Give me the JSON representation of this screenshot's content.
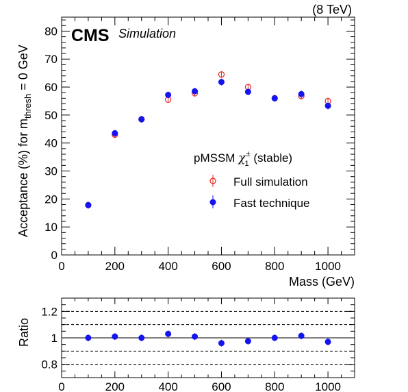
{
  "header": {
    "energy_label": "(8 TeV)",
    "experiment": "CMS",
    "tag": "Simulation"
  },
  "legend": {
    "title_main": "pMSSM ",
    "title_chi": "χ",
    "title_sub": "1",
    "title_sup": "±",
    "title_tail": " (stable)",
    "placement": "right-middle"
  },
  "colors": {
    "full": "#e8221f",
    "fast": "#1414f0",
    "axis": "#000000"
  },
  "chart_data": [
    {
      "type": "scatter",
      "xlabel": "Mass (GeV)",
      "ylabel_main": "Acceptance (%) for m",
      "ylabel_sub": "thresh",
      "ylabel_tail": " = 0 GeV",
      "xlim": [
        0,
        1100
      ],
      "ylim": [
        0,
        85
      ],
      "x_ticks": [
        0,
        200,
        400,
        600,
        800,
        1000
      ],
      "x_tick_labels": [
        "0",
        "200",
        "400",
        "600",
        "800",
        "1000"
      ],
      "y_ticks": [
        0,
        10,
        20,
        30,
        40,
        50,
        60,
        70,
        80
      ],
      "y_tick_labels": [
        "0",
        "10",
        "20",
        "30",
        "40",
        "50",
        "60",
        "70",
        "80"
      ],
      "x": [
        100,
        200,
        300,
        400,
        500,
        600,
        700,
        800,
        900,
        1000
      ],
      "series": [
        {
          "name": "Full simulation",
          "marker": "open-circle",
          "values": [
            17.8,
            43.0,
            48.5,
            55.5,
            57.8,
            64.5,
            60.0,
            56.0,
            56.8,
            55.0
          ]
        },
        {
          "name": "Fast technique",
          "marker": "filled-circle",
          "values": [
            17.8,
            43.5,
            48.5,
            57.2,
            58.5,
            61.8,
            58.3,
            56.0,
            57.5,
            53.3
          ]
        }
      ]
    },
    {
      "type": "scatter",
      "xlabel": "",
      "ylabel": "Ratio",
      "xlim": [
        0,
        1100
      ],
      "ylim": [
        0.7,
        1.3
      ],
      "x_ticks": [
        0,
        200,
        400,
        600,
        800,
        1000
      ],
      "x_tick_labels": [
        "0",
        "200",
        "400",
        "600",
        "800",
        "1000"
      ],
      "y_ticks": [
        0.8,
        1.0,
        1.2
      ],
      "y_tick_labels": [
        "0.8",
        "1",
        "1.2"
      ],
      "reference_lines": [
        1.0
      ],
      "dashed_lines": [
        0.8,
        0.9,
        1.1,
        1.2
      ],
      "x": [
        100,
        200,
        300,
        400,
        500,
        600,
        700,
        800,
        900,
        1000
      ],
      "series": [
        {
          "values": [
            1.0,
            1.01,
            1.0,
            1.03,
            1.01,
            0.96,
            0.975,
            1.0,
            1.015,
            0.97
          ]
        }
      ]
    }
  ]
}
